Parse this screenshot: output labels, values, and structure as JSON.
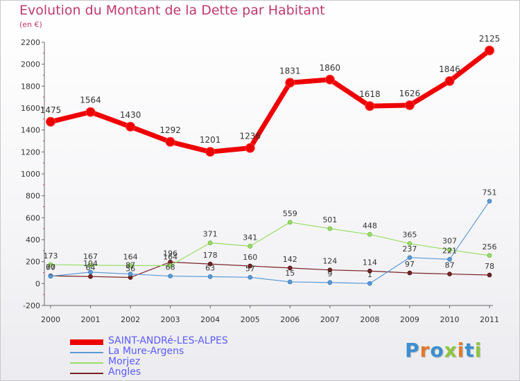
{
  "header": {
    "title": "Evolution du Montant de la Dette par Habitant",
    "subtitle": "(en €)"
  },
  "chart_data": {
    "type": "line",
    "title": "Evolution du Montant de la Dette par Habitant",
    "subtitle": "(en €)",
    "x": [
      "2000",
      "2001",
      "2002",
      "2003",
      "2004",
      "2005",
      "2006",
      "2007",
      "2008",
      "2009",
      "2010",
      "2011"
    ],
    "ylim": [
      -200,
      2200
    ],
    "yticks": [
      -200,
      0,
      200,
      400,
      600,
      800,
      1000,
      1200,
      1400,
      1600,
      1800,
      2000,
      2200
    ],
    "grid": false,
    "legend_position": "bottom-left",
    "series": [
      {
        "name": "SAINT-ANDRé-LES-ALPES",
        "color": "#ee0000",
        "values": [
          1475,
          1564,
          1430,
          1292,
          1201,
          1236,
          1831,
          1860,
          1618,
          1626,
          1846,
          2125
        ]
      },
      {
        "name": "La Mure-Argens",
        "color": "#5b9ad5",
        "values": [
          67,
          104,
          87,
          68,
          63,
          57,
          15,
          9,
          1,
          237,
          221,
          751
        ]
      },
      {
        "name": "Morjez",
        "color": "#99dd66",
        "values": [
          173,
          167,
          164,
          164,
          371,
          341,
          559,
          501,
          448,
          365,
          307,
          256
        ]
      },
      {
        "name": "Angles",
        "color": "#772222",
        "values": [
          70,
          64,
          56,
          196,
          178,
          160,
          142,
          124,
          114,
          97,
          87,
          78
        ]
      }
    ]
  },
  "logo": {
    "letters": [
      {
        "ch": "P",
        "color": "#3b8fd0"
      },
      {
        "ch": "r",
        "color": "#e07a2a"
      },
      {
        "ch": "o",
        "color": "#3b8fd0"
      },
      {
        "ch": "x",
        "color": "#8cc63f"
      },
      {
        "ch": "i",
        "color": "#e07a2a"
      },
      {
        "ch": "t",
        "color": "#3b8fd0"
      },
      {
        "ch": "i",
        "color": "#8cc63f"
      }
    ]
  }
}
